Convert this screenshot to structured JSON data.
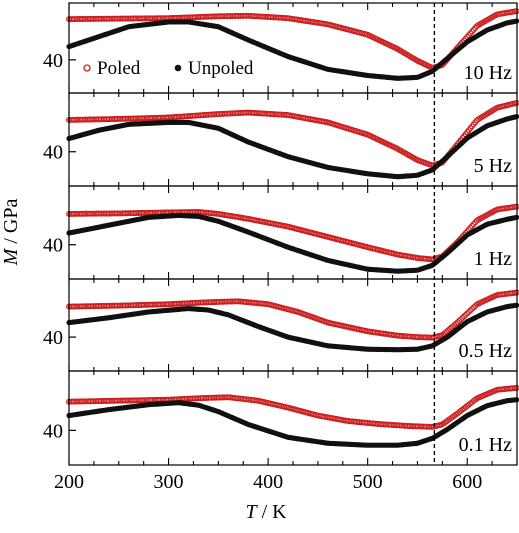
{
  "chart_data": {
    "type": "scatter",
    "xlabel_italic": "T",
    "xlabel_rest": " / K",
    "ylabel_italic": "M",
    "ylabel_rest": " / GPa",
    "xlim": [
      200,
      650
    ],
    "x_ticks": [
      200,
      300,
      400,
      500,
      600
    ],
    "y_tick_label": "40",
    "marker_line_T": 567,
    "legend": {
      "placement": "top-panel-left",
      "items": [
        {
          "label": "Poled",
          "marker": "open-circle",
          "color": "#cc1f1f"
        },
        {
          "label": "Unpoled",
          "marker": "filled-circle",
          "color": "#111111"
        }
      ]
    },
    "panels": [
      {
        "frequency": "10 Hz",
        "y_range": [
          33,
          52
        ],
        "y_tick": 40,
        "series": [
          {
            "name": "Poled",
            "color": "#cc1f1f",
            "points": [
              [
                200,
                48.6
              ],
              [
                250,
                48.7
              ],
              [
                300,
                48.8
              ],
              [
                350,
                49.2
              ],
              [
                380,
                49.3
              ],
              [
                420,
                48.8
              ],
              [
                460,
                47.5
              ],
              [
                500,
                45.3
              ],
              [
                530,
                42.3
              ],
              [
                550,
                39.8
              ],
              [
                565,
                38.3
              ],
              [
                575,
                38.9
              ],
              [
                590,
                42.5
              ],
              [
                610,
                47.2
              ],
              [
                630,
                49.6
              ],
              [
                650,
                50.3
              ]
            ]
          },
          {
            "name": "Unpoled",
            "color": "#111111",
            "points": [
              [
                200,
                42.8
              ],
              [
                230,
                44.9
              ],
              [
                260,
                47.0
              ],
              [
                300,
                48.0
              ],
              [
                320,
                48.0
              ],
              [
                350,
                47.0
              ],
              [
                380,
                44.2
              ],
              [
                420,
                40.7
              ],
              [
                460,
                38.0
              ],
              [
                500,
                36.7
              ],
              [
                530,
                36.1
              ],
              [
                550,
                36.3
              ],
              [
                565,
                37.6
              ],
              [
                580,
                40.3
              ],
              [
                600,
                43.8
              ],
              [
                620,
                46.3
              ],
              [
                640,
                47.8
              ],
              [
                650,
                48.2
              ]
            ]
          }
        ]
      },
      {
        "frequency": "5 Hz",
        "y_range": [
          33,
          52
        ],
        "y_tick": 40,
        "series": [
          {
            "name": "Poled",
            "color": "#cc1f1f",
            "points": [
              [
                200,
                46.5
              ],
              [
                250,
                46.7
              ],
              [
                300,
                47.0
              ],
              [
                350,
                47.7
              ],
              [
                380,
                48.0
              ],
              [
                420,
                47.5
              ],
              [
                460,
                46.0
              ],
              [
                500,
                43.5
              ],
              [
                530,
                40.6
              ],
              [
                550,
                38.3
              ],
              [
                565,
                37.2
              ],
              [
                575,
                37.8
              ],
              [
                590,
                41.5
              ],
              [
                610,
                46.5
              ],
              [
                630,
                49.0
              ],
              [
                650,
                50.0
              ]
            ]
          },
          {
            "name": "Unpoled",
            "color": "#111111",
            "points": [
              [
                200,
                42.7
              ],
              [
                230,
                44.4
              ],
              [
                260,
                45.6
              ],
              [
                300,
                46.0
              ],
              [
                320,
                46.0
              ],
              [
                350,
                44.8
              ],
              [
                380,
                42.0
              ],
              [
                420,
                39.0
              ],
              [
                460,
                36.8
              ],
              [
                500,
                35.5
              ],
              [
                530,
                34.9
              ],
              [
                550,
                35.2
              ],
              [
                565,
                36.3
              ],
              [
                580,
                39.0
              ],
              [
                600,
                42.8
              ],
              [
                620,
                45.3
              ],
              [
                640,
                46.7
              ],
              [
                650,
                47.2
              ]
            ]
          }
        ]
      },
      {
        "frequency": "1 Hz",
        "y_range": [
          33,
          52
        ],
        "y_tick": 40,
        "series": [
          {
            "name": "Poled",
            "color": "#cc1f1f",
            "points": [
              [
                200,
                46.3
              ],
              [
                250,
                46.4
              ],
              [
                300,
                46.6
              ],
              [
                330,
                46.7
              ],
              [
                350,
                46.3
              ],
              [
                380,
                45.3
              ],
              [
                420,
                43.7
              ],
              [
                460,
                41.6
              ],
              [
                500,
                39.5
              ],
              [
                530,
                38.0
              ],
              [
                550,
                37.3
              ],
              [
                565,
                37.0
              ],
              [
                575,
                37.6
              ],
              [
                590,
                40.5
              ],
              [
                610,
                45.0
              ],
              [
                630,
                47.2
              ],
              [
                650,
                47.8
              ]
            ]
          },
          {
            "name": "Unpoled",
            "color": "#111111",
            "points": [
              [
                200,
                42.4
              ],
              [
                240,
                44.0
              ],
              [
                280,
                45.6
              ],
              [
                310,
                46.0
              ],
              [
                330,
                45.8
              ],
              [
                350,
                44.8
              ],
              [
                380,
                42.6
              ],
              [
                420,
                39.5
              ],
              [
                460,
                36.8
              ],
              [
                500,
                35.0
              ],
              [
                530,
                34.6
              ],
              [
                550,
                34.8
              ],
              [
                565,
                35.8
              ],
              [
                580,
                38.3
              ],
              [
                600,
                42.0
              ],
              [
                620,
                44.2
              ],
              [
                640,
                45.2
              ],
              [
                650,
                45.6
              ]
            ]
          }
        ]
      },
      {
        "frequency": "0.5 Hz",
        "y_range": [
          33,
          52
        ],
        "y_tick": 40,
        "series": [
          {
            "name": "Poled",
            "color": "#cc1f1f",
            "points": [
              [
                200,
                46.3
              ],
              [
                250,
                46.5
              ],
              [
                300,
                46.8
              ],
              [
                340,
                47.2
              ],
              [
                370,
                47.4
              ],
              [
                400,
                46.8
              ],
              [
                430,
                45.2
              ],
              [
                460,
                43.0
              ],
              [
                500,
                41.2
              ],
              [
                530,
                40.3
              ],
              [
                550,
                40.0
              ],
              [
                565,
                39.9
              ],
              [
                575,
                40.4
              ],
              [
                590,
                43.0
              ],
              [
                610,
                46.8
              ],
              [
                630,
                48.7
              ],
              [
                650,
                49.2
              ]
            ]
          },
          {
            "name": "Unpoled",
            "color": "#111111",
            "points": [
              [
                200,
                43.0
              ],
              [
                240,
                44.0
              ],
              [
                280,
                45.2
              ],
              [
                320,
                45.9
              ],
              [
                340,
                45.6
              ],
              [
                360,
                44.6
              ],
              [
                390,
                42.2
              ],
              [
                420,
                40.0
              ],
              [
                460,
                38.2
              ],
              [
                500,
                37.5
              ],
              [
                530,
                37.4
              ],
              [
                550,
                37.5
              ],
              [
                565,
                38.2
              ],
              [
                580,
                40.0
              ],
              [
                600,
                43.2
              ],
              [
                620,
                45.2
              ],
              [
                640,
                46.3
              ],
              [
                650,
                46.6
              ]
            ]
          }
        ]
      },
      {
        "frequency": "0.1 Hz",
        "y_range": [
          33,
          52
        ],
        "y_tick": 40,
        "series": [
          {
            "name": "Poled",
            "color": "#cc1f1f",
            "points": [
              [
                200,
                45.8
              ],
              [
                250,
                46.0
              ],
              [
                300,
                46.2
              ],
              [
                330,
                46.5
              ],
              [
                360,
                46.7
              ],
              [
                390,
                46.0
              ],
              [
                420,
                44.6
              ],
              [
                450,
                43.0
              ],
              [
                480,
                41.9
              ],
              [
                510,
                41.3
              ],
              [
                540,
                40.9
              ],
              [
                565,
                40.7
              ],
              [
                575,
                41.2
              ],
              [
                590,
                43.4
              ],
              [
                610,
                46.5
              ],
              [
                630,
                48.2
              ],
              [
                650,
                48.6
              ]
            ]
          },
          {
            "name": "Unpoled",
            "color": "#111111",
            "points": [
              [
                200,
                43.0
              ],
              [
                240,
                44.2
              ],
              [
                280,
                45.2
              ],
              [
                310,
                45.6
              ],
              [
                330,
                45.1
              ],
              [
                350,
                43.8
              ],
              [
                380,
                41.2
              ],
              [
                420,
                38.6
              ],
              [
                460,
                37.4
              ],
              [
                500,
                37.0
              ],
              [
                530,
                37.0
              ],
              [
                550,
                37.4
              ],
              [
                565,
                38.4
              ],
              [
                580,
                40.2
              ],
              [
                600,
                43.0
              ],
              [
                620,
                45.0
              ],
              [
                640,
                46.0
              ],
              [
                650,
                46.2
              ]
            ]
          }
        ]
      }
    ]
  }
}
